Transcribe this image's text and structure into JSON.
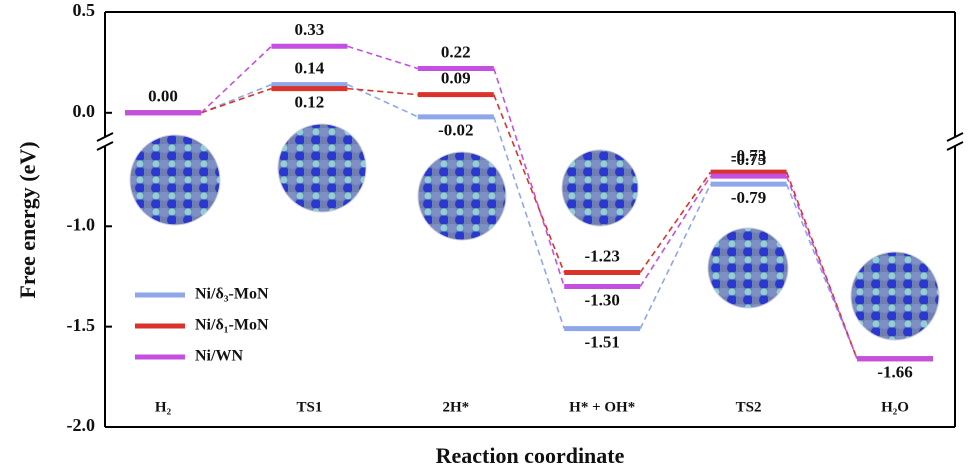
{
  "chart_data": {
    "type": "energy-level",
    "ylabel": "Free energy (eV)",
    "xlabel": "Reaction coordinate",
    "categories": [
      "H₂",
      "TS1",
      "2H*",
      "H* + OH*",
      "TS2",
      "H₂O"
    ],
    "series": [
      {
        "name": "Ni/δ₃-MoN",
        "color": "#8ea6ea",
        "values": [
          0.0,
          0.14,
          -0.02,
          -1.51,
          -0.79,
          -1.66
        ],
        "value_labels": [
          null,
          "0.14",
          "-0.02",
          "-1.51",
          "-0.79",
          null
        ]
      },
      {
        "name": "Ni/δ₁-MoN",
        "color": "#d9332b",
        "values": [
          0.0,
          0.12,
          0.09,
          -1.23,
          -0.73,
          -1.66
        ],
        "value_labels": [
          "0.00",
          "0.12",
          "0.09",
          "-1.23",
          "-0.73",
          "-1.66"
        ]
      },
      {
        "name": "Ni/WN",
        "color": "#c44fe0",
        "values": [
          0.0,
          0.33,
          0.22,
          -1.3,
          -0.75,
          -1.66
        ],
        "value_labels": [
          null,
          "0.33",
          "0.22",
          "-1.30",
          "-0.75",
          null
        ]
      }
    ],
    "ylim": [
      -2.0,
      0.5
    ],
    "y_break": [
      -0.12,
      -0.6
    ],
    "yticks": [
      0.5,
      {
        "value": 0,
        "label": "0.0"
      },
      {
        "value": -1,
        "label": "-1.0"
      },
      {
        "value": -1.5,
        "label": "-1.5"
      },
      {
        "value": -2,
        "label": "-2.0"
      }
    ],
    "legend": "lower left"
  }
}
